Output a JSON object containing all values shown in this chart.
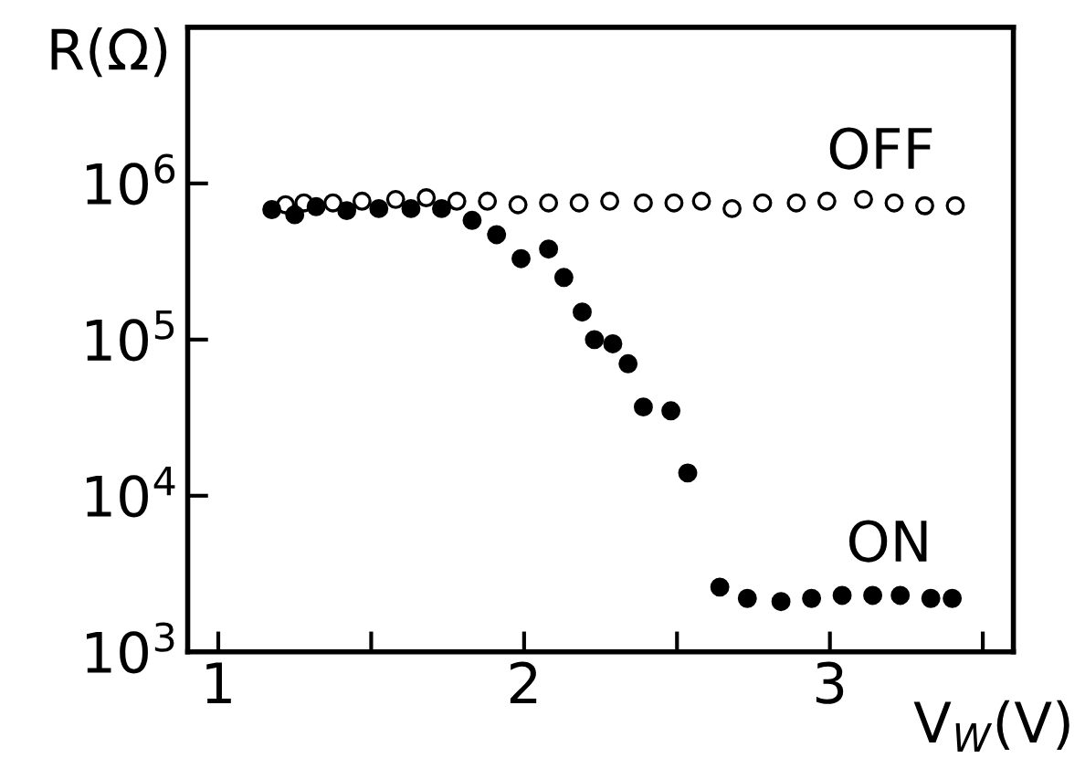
{
  "chart_data": {
    "type": "scatter",
    "ylabel": "R(Ω)",
    "xlabel": "V$_{W}$(V)",
    "log": "y",
    "marker": "circle",
    "grid": false,
    "legend": false,
    "xlim": [
      0.9,
      3.6
    ],
    "xticks": [
      1,
      {
        "value": 1.5,
        "label": null
      },
      2,
      {
        "value": 2.5,
        "label": null
      },
      3,
      {
        "value": 3.5,
        "label": null
      }
    ],
    "ylim": [
      1000,
      10000000
    ],
    "yticks": [
      {
        "value": 1000,
        "label": "10$^{3}$"
      },
      {
        "value": 10000,
        "label": "10$^{4}$"
      },
      {
        "value": 100000,
        "label": "10$^{5}$"
      },
      {
        "value": 1000000,
        "label": "10$^{6}$"
      }
    ],
    "series": [
      {
        "name": "OFF",
        "color": "#ffffff",
        "x": [
          1.22,
          1.28,
          1.375,
          1.47,
          1.58,
          1.68,
          1.78,
          1.88,
          1.98,
          2.08,
          2.18,
          2.28,
          2.39,
          2.49,
          2.58,
          2.68,
          2.78,
          2.89,
          2.99,
          3.11,
          3.21,
          3.31,
          3.41
        ],
        "values": [
          730000,
          750000,
          750000,
          770000,
          790000,
          810000,
          770000,
          770000,
          730000,
          750000,
          750000,
          770000,
          750000,
          750000,
          770000,
          690000,
          750000,
          750000,
          770000,
          790000,
          750000,
          720000,
          720000
        ]
      },
      {
        "name": "ON",
        "color": "#000000",
        "x": [
          1.175,
          1.25,
          1.32,
          1.42,
          1.525,
          1.63,
          1.73,
          1.83,
          1.91,
          1.99,
          2.08,
          2.13,
          2.19,
          2.23,
          2.29,
          2.34,
          2.39,
          2.48,
          2.535,
          2.64,
          2.73,
          2.84,
          2.94,
          3.04,
          3.14,
          3.23,
          3.33,
          3.4
        ],
        "values": [
          680000,
          630000,
          710000,
          670000,
          690000,
          690000,
          690000,
          580000,
          470000,
          330000,
          380000,
          250000,
          150000,
          100000,
          94000,
          70000,
          37000,
          35000,
          14000,
          2600,
          2200,
          2100,
          2200,
          2300,
          2300,
          2300,
          2200,
          2200
        ]
      }
    ]
  }
}
